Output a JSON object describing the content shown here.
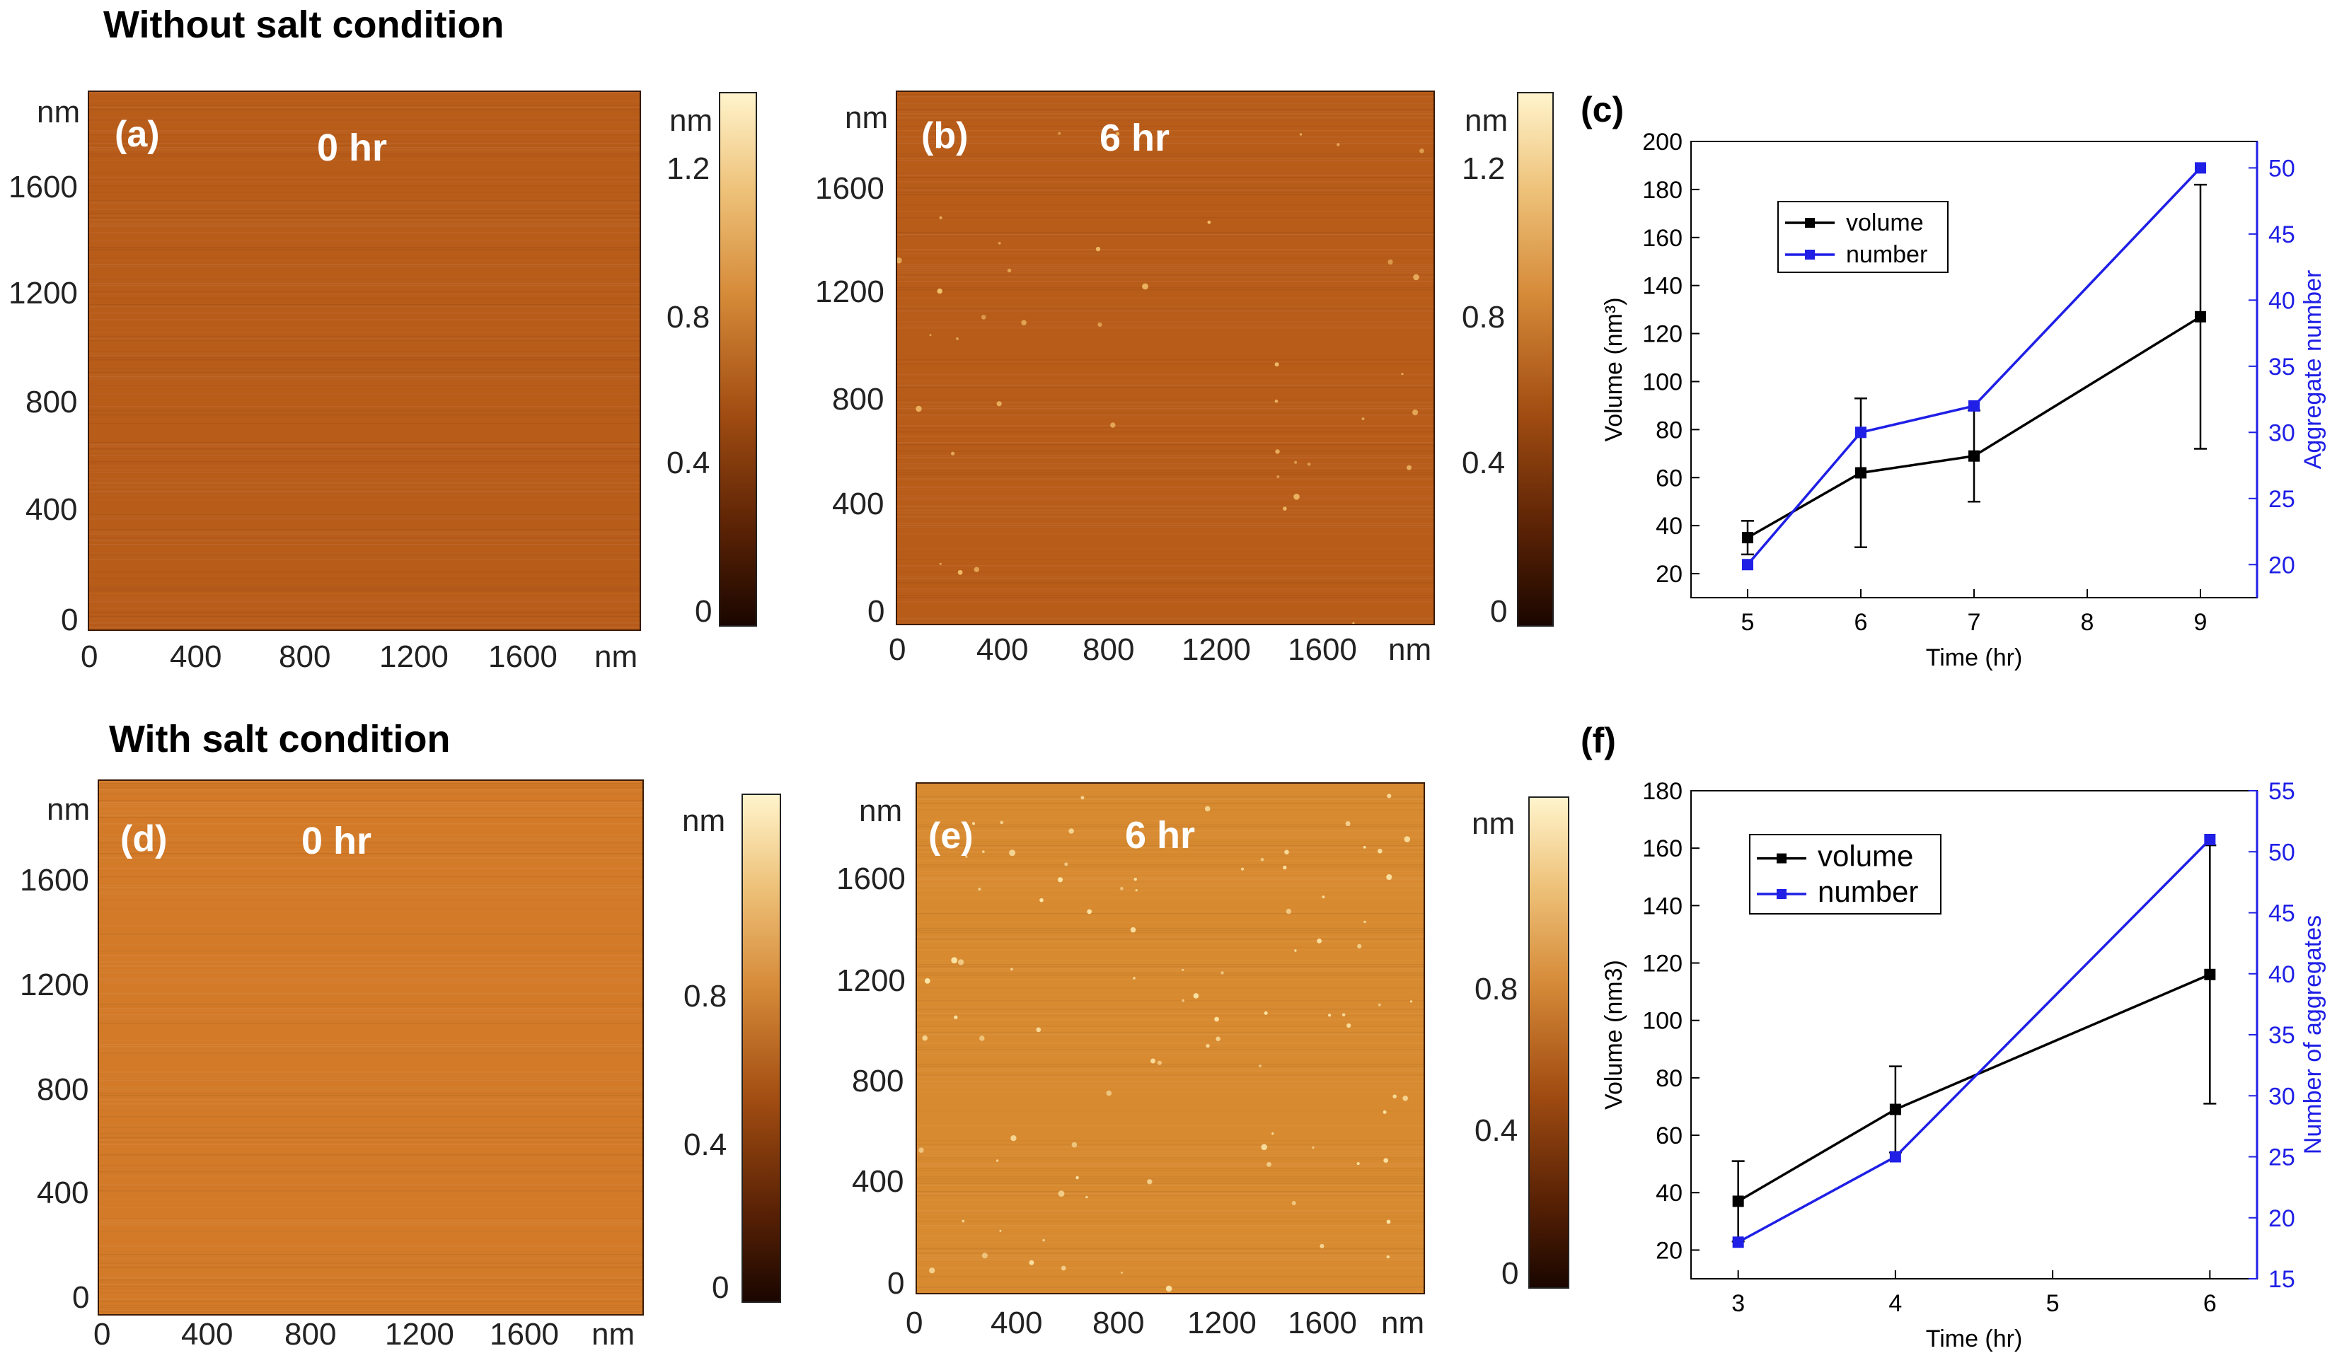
{
  "headings": {
    "top": "Without salt condition",
    "bottom": "With salt condition"
  },
  "afm_panels": [
    {
      "id": "a",
      "label": "(a)",
      "time": "0 hr",
      "yticks": [
        "nm",
        "1600",
        "1200",
        "800",
        "400",
        "0"
      ],
      "xticks": [
        "0",
        "400",
        "800",
        "1200",
        "1600",
        "nm"
      ],
      "colorbar": [
        "nm",
        "1.2",
        "0.8",
        "0.4",
        "0"
      ]
    },
    {
      "id": "b",
      "label": "(b)",
      "time": "6 hr",
      "yticks": [
        "nm",
        "1600",
        "1200",
        "800",
        "400",
        "0"
      ],
      "xticks": [
        "0",
        "400",
        "800",
        "1200",
        "1600",
        "nm"
      ],
      "colorbar": [
        "nm",
        "1.2",
        "0.8",
        "0.4",
        "0"
      ]
    },
    {
      "id": "d",
      "label": "(d)",
      "time": "0 hr",
      "yticks": [
        "nm",
        "1600",
        "1200",
        "800",
        "400",
        "0"
      ],
      "xticks": [
        "0",
        "400",
        "800",
        "1200",
        "1600",
        "nm"
      ],
      "colorbar": [
        "nm",
        "0.8",
        "0.4",
        "0"
      ]
    },
    {
      "id": "e",
      "label": "(e)",
      "time": "6 hr",
      "yticks": [
        "nm",
        "1600",
        "1200",
        "800",
        "400",
        "0"
      ],
      "xticks": [
        "0",
        "400",
        "800",
        "1200",
        "1600",
        "nm"
      ],
      "colorbar": [
        "nm",
        "0.8",
        "0.4",
        "0"
      ]
    }
  ],
  "chart_data": [
    {
      "panel": "(c)",
      "type": "line",
      "xlabel": "Time (hr)",
      "ylabel": "Volume (nm³)",
      "ylabel_right": "Aggregate number",
      "xlim": [
        4.5,
        9.5
      ],
      "ylim": [
        10,
        200
      ],
      "ylim_right": [
        17.5,
        52
      ],
      "xticks": [
        "5",
        "6",
        "7",
        "8",
        "9"
      ],
      "yticks": [
        "20",
        "40",
        "60",
        "80",
        "100",
        "120",
        "140",
        "160",
        "180",
        "200"
      ],
      "yticks_right": [
        "20",
        "25",
        "30",
        "35",
        "40",
        "45",
        "50"
      ],
      "legend": "top-left",
      "series": [
        {
          "name": "volume",
          "color": "#000000",
          "axis": "left",
          "x": [
            5,
            6,
            7,
            9
          ],
          "values": [
            35,
            62,
            69,
            127
          ],
          "error": [
            7,
            31,
            19,
            55
          ]
        },
        {
          "name": "number",
          "color": "#1f1fe6",
          "axis": "right",
          "x": [
            5,
            6,
            7,
            9
          ],
          "values": [
            20,
            30,
            32,
            50
          ]
        }
      ]
    },
    {
      "panel": "(f)",
      "type": "line",
      "xlabel": "Time (hr)",
      "ylabel": "Volume (nm3)",
      "ylabel_right": "Number of aggregates",
      "xlim": [
        2.7,
        6.3
      ],
      "ylim": [
        10,
        180
      ],
      "ylim_right": [
        15,
        55
      ],
      "xticks": [
        "3",
        "4",
        "5",
        "6"
      ],
      "yticks": [
        "20",
        "40",
        "60",
        "80",
        "100",
        "120",
        "140",
        "160",
        "180"
      ],
      "yticks_right": [
        "15",
        "20",
        "25",
        "30",
        "35",
        "40",
        "45",
        "50",
        "55"
      ],
      "legend": "top-left",
      "series": [
        {
          "name": "volume",
          "color": "#000000",
          "axis": "left",
          "x": [
            3,
            4,
            6
          ],
          "values": [
            37,
            69,
            116
          ],
          "error": [
            14,
            15,
            45
          ]
        },
        {
          "name": "number",
          "color": "#1f1fe6",
          "axis": "right",
          "x": [
            3,
            4,
            6
          ],
          "values": [
            18,
            25,
            51
          ]
        }
      ]
    }
  ]
}
